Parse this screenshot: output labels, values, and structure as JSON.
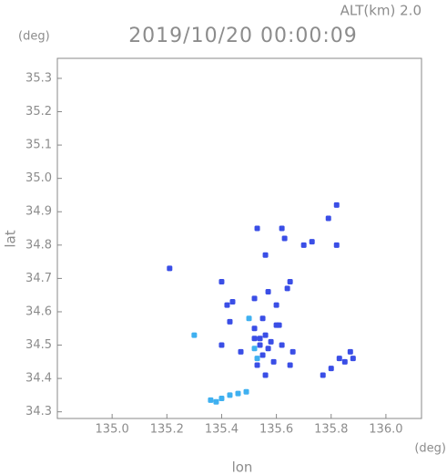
{
  "chart_data": {
    "type": "scatter",
    "title": "2019/10/20 00:00:09",
    "subtitle": "ALT(km) 2.0",
    "y_unit": "(deg)",
    "x_unit": "(deg)",
    "xlabel": "lon",
    "ylabel": "lat",
    "xlim": [
      134.8,
      136.13
    ],
    "ylim": [
      34.28,
      35.36
    ],
    "xticks": [
      {
        "value": 135.0,
        "label": "135.0"
      },
      {
        "value": 135.2,
        "label": "135.2"
      },
      {
        "value": 135.4,
        "label": "135.4"
      },
      {
        "value": 135.6,
        "label": "135.6"
      },
      {
        "value": 135.8,
        "label": "135.8"
      },
      {
        "value": 136.0,
        "label": "136.0"
      }
    ],
    "yticks": [
      {
        "value": 34.3,
        "label": "34.3"
      },
      34.4,
      34.5,
      34.6,
      34.7,
      34.8,
      34.9,
      {
        "value": 35.0,
        "label": "35.0"
      },
      35.1,
      35.2,
      35.3
    ],
    "series": [
      {
        "color": "#3a4ee6",
        "x": [
          135.21,
          135.53,
          135.62,
          135.63,
          135.79,
          135.82,
          135.82,
          135.7,
          135.73,
          135.56,
          135.4,
          135.44,
          135.42,
          135.52,
          135.57,
          135.6,
          135.64,
          135.65,
          135.55,
          135.61,
          135.52,
          135.56,
          135.54,
          135.58,
          135.55,
          135.62,
          135.66,
          135.65,
          135.59,
          135.53,
          135.56,
          135.4,
          135.43,
          135.83,
          135.85,
          135.87,
          135.88,
          135.8,
          135.77,
          135.6,
          135.47,
          135.54,
          135.57,
          135.52
        ],
        "y": [
          34.73,
          34.85,
          34.85,
          34.82,
          34.88,
          34.92,
          34.8,
          34.8,
          34.81,
          34.77,
          34.69,
          34.63,
          34.62,
          34.64,
          34.66,
          34.62,
          34.67,
          34.69,
          34.58,
          34.56,
          34.55,
          34.53,
          34.5,
          34.51,
          34.47,
          34.5,
          34.48,
          34.44,
          34.45,
          34.44,
          34.41,
          34.5,
          34.57,
          34.46,
          34.45,
          34.48,
          34.46,
          34.43,
          34.41,
          34.56,
          34.48,
          34.52,
          34.49,
          34.52
        ]
      },
      {
        "color": "#3fb0f0",
        "x": [
          135.3,
          135.5,
          135.53,
          135.52,
          135.4,
          135.43,
          135.46,
          135.49,
          135.36,
          135.38
        ],
        "y": [
          34.53,
          34.58,
          34.46,
          34.49,
          34.34,
          34.35,
          34.355,
          34.36,
          34.335,
          34.33
        ]
      }
    ]
  }
}
